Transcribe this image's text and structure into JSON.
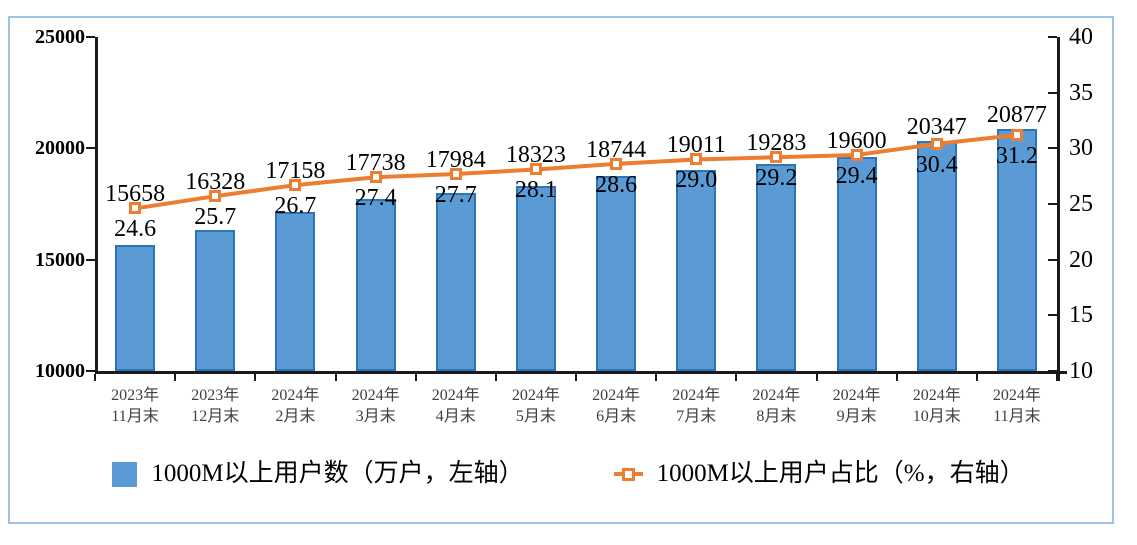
{
  "chart_data": {
    "type": "bar",
    "subtype": "combo-bar-line",
    "title": "",
    "categories": [
      {
        "line1": "2023年",
        "line2": "11月末"
      },
      {
        "line1": "2023年",
        "line2": "12月末"
      },
      {
        "line1": "2024年",
        "line2": "2月末"
      },
      {
        "line1": "2024年",
        "line2": "3月末"
      },
      {
        "line1": "2024年",
        "line2": "4月末"
      },
      {
        "line1": "2024年",
        "line2": "5月末"
      },
      {
        "line1": "2024年",
        "line2": "6月末"
      },
      {
        "line1": "2024年",
        "line2": "7月末"
      },
      {
        "line1": "2024年",
        "line2": "8月末"
      },
      {
        "line1": "2024年",
        "line2": "9月末"
      },
      {
        "line1": "2024年",
        "line2": "10月末"
      },
      {
        "line1": "2024年",
        "line2": "11月末"
      }
    ],
    "series": [
      {
        "name": "1000M以上用户数（万户，左轴）",
        "type": "bar",
        "axis": "left",
        "values": [
          15658,
          16328,
          17158,
          17738,
          17984,
          18323,
          18744,
          19011,
          19283,
          19600,
          20347,
          20877
        ]
      },
      {
        "name": "1000M以上用户占比（%，右轴）",
        "type": "line",
        "axis": "right",
        "values": [
          24.6,
          25.7,
          26.7,
          27.4,
          27.7,
          28.1,
          28.6,
          29.0,
          29.2,
          29.4,
          30.4,
          31.2
        ]
      }
    ],
    "left_axis": {
      "min": 10000,
      "max": 25000,
      "ticks": [
        10000,
        15000,
        20000,
        25000
      ]
    },
    "right_axis": {
      "min": 10,
      "max": 40,
      "ticks": [
        10,
        15,
        20,
        25,
        30,
        35,
        40
      ]
    },
    "grid": false,
    "legend_position": "bottom"
  },
  "colors": {
    "bar_fill": "#5B9BD5",
    "bar_border": "#2E75B6",
    "line": "#ED7D31",
    "marker_border": "#ED7D31",
    "marker_fill": "#FFFFFF",
    "frame_border": "#9DC3E6",
    "axis": "#1A1A1A",
    "x_label": "#404040"
  }
}
